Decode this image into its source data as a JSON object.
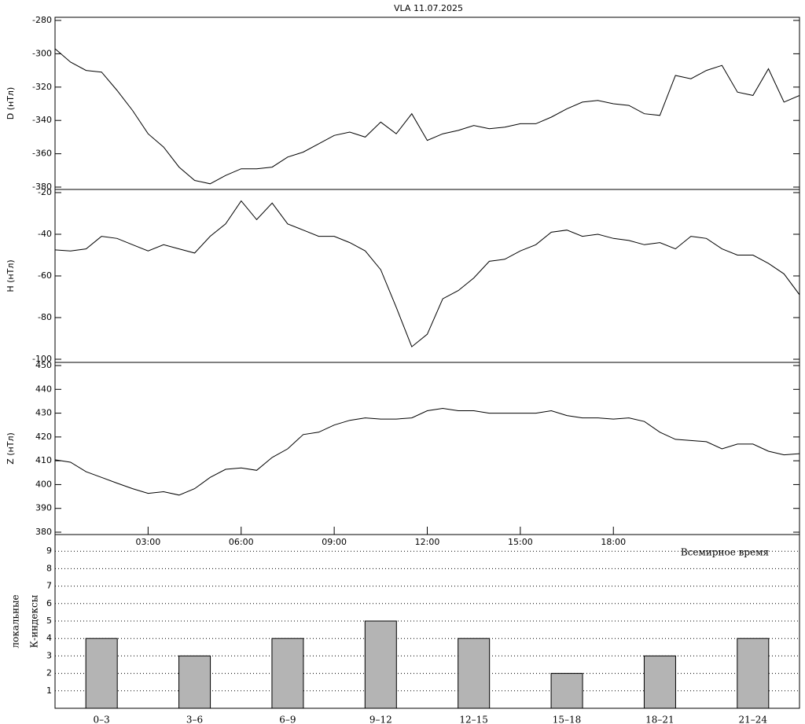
{
  "title": "VLA   11.07.2025",
  "chart_data": [
    {
      "type": "line",
      "ylabel": "D (нТл)",
      "color": "#000000",
      "xlim": [
        0,
        24
      ],
      "x": [
        0,
        0.5,
        1,
        1.5,
        2,
        2.5,
        3,
        3.5,
        4,
        4.5,
        5,
        5.5,
        6,
        6.5,
        7,
        7.5,
        8,
        8.5,
        9,
        9.5,
        10,
        10.5,
        11,
        11.5,
        12,
        12.5,
        13,
        13.5,
        14,
        14.5,
        15,
        15.5,
        16,
        16.5,
        17,
        17.5,
        18,
        18.5,
        19,
        19.5,
        20,
        20.5,
        21,
        21.5,
        22,
        22.5,
        23,
        23.5,
        24
      ],
      "values": [
        -297,
        -305,
        -310,
        -311,
        -322,
        -334,
        -348,
        -356,
        -368,
        -376,
        -378,
        -373,
        -369,
        -369,
        -368,
        -362,
        -359,
        -354,
        -349,
        -347,
        -350,
        -341,
        -348,
        -336,
        -352,
        -348,
        -346,
        -343,
        -345,
        -344,
        -342,
        -342,
        -338,
        -333,
        -329,
        -328,
        -330,
        -331,
        -336,
        -337,
        -313,
        -315,
        -310,
        -307,
        -323,
        -325,
        -309,
        -329,
        -325
      ],
      "ylim": [
        -380,
        -280
      ],
      "yticks": [
        -380,
        -360,
        -340,
        -320,
        -300,
        -280
      ]
    },
    {
      "type": "line",
      "ylabel": "H (нТл)",
      "color": "#000000",
      "xlim": [
        0,
        24
      ],
      "x": [
        0,
        0.5,
        1,
        1.5,
        2,
        2.5,
        3,
        3.5,
        4,
        4.5,
        5,
        5.5,
        6,
        6.5,
        7,
        7.5,
        8,
        8.5,
        9,
        9.5,
        10,
        10.5,
        11,
        11.5,
        12,
        12.5,
        13,
        13.5,
        14,
        14.5,
        15,
        15.5,
        16,
        16.5,
        17,
        17.5,
        18,
        18.5,
        19,
        19.5,
        20,
        20.5,
        21,
        21.5,
        22,
        22.5,
        23,
        23.5,
        24
      ],
      "values": [
        -47.5,
        -48,
        -47,
        -41,
        -42,
        -45,
        -48,
        -45,
        -47,
        -49,
        -41,
        -35,
        -24,
        -33,
        -25,
        -35,
        -38,
        -41,
        -41,
        -44,
        -48,
        -57,
        -75,
        -94,
        -88,
        -71,
        -67,
        -61,
        -53,
        -52,
        -48,
        -45,
        -39,
        -38,
        -41,
        -40,
        -42,
        -43,
        -45,
        -44,
        -47,
        -41,
        -42,
        -47,
        -50,
        -50,
        -54,
        -59,
        -69
      ],
      "ylim": [
        -100,
        -20
      ],
      "yticks": [
        -100,
        -80,
        -60,
        -40,
        -20
      ]
    },
    {
      "type": "line",
      "ylabel": "Z (нТл)",
      "xlabel": "Всемирное время",
      "color": "#000000",
      "xlim": [
        0,
        24
      ],
      "xticks": [
        {
          "value": 3,
          "label": "03:00"
        },
        {
          "value": 6,
          "label": "06:00"
        },
        {
          "value": 9,
          "label": "09:00"
        },
        {
          "value": 12,
          "label": "12:00"
        },
        {
          "value": 15,
          "label": "15:00"
        },
        {
          "value": 18,
          "label": "18:00"
        }
      ],
      "x": [
        0,
        0.5,
        1,
        1.5,
        2,
        2.5,
        3,
        3.5,
        4,
        4.5,
        5,
        5.5,
        6,
        6.5,
        7,
        7.5,
        8,
        8.5,
        9,
        9.5,
        10,
        10.5,
        11,
        11.5,
        12,
        12.5,
        13,
        13.5,
        14,
        14.5,
        15,
        15.5,
        16,
        16.5,
        17,
        17.5,
        18,
        18.5,
        19,
        19.5,
        20,
        20.5,
        21,
        21.5,
        22,
        22.5,
        23,
        23.5,
        24
      ],
      "values": [
        410.4,
        409.4,
        405.4,
        403,
        400.6,
        398.3,
        396.3,
        397,
        395.6,
        398.3,
        403,
        406.4,
        407,
        406,
        411.4,
        415,
        421,
        422,
        425,
        427,
        428,
        427.5,
        427.5,
        428,
        431,
        432,
        431,
        431,
        430,
        430,
        430,
        430,
        431,
        429,
        428,
        428,
        427.5,
        428,
        426.5,
        422,
        419,
        418.5,
        418,
        415,
        417,
        417,
        414,
        412.5,
        413
      ],
      "ylim": [
        380,
        450
      ],
      "yticks": [
        380,
        390,
        400,
        410,
        420,
        430,
        440,
        450
      ]
    },
    {
      "type": "bar",
      "ylabel": [
        "локальные",
        "К-индексы"
      ],
      "color": "#b4b4b4",
      "grid": true,
      "categories": [
        "0–3",
        "3–6",
        "6–9",
        "9–12",
        "12–15",
        "15–18",
        "18–21",
        "21–24"
      ],
      "values": [
        4,
        3,
        4,
        5,
        4,
        2,
        3,
        4
      ],
      "ylim": [
        0,
        10
      ],
      "yticks": [
        1,
        2,
        3,
        4,
        5,
        6,
        7,
        8,
        9
      ]
    }
  ]
}
